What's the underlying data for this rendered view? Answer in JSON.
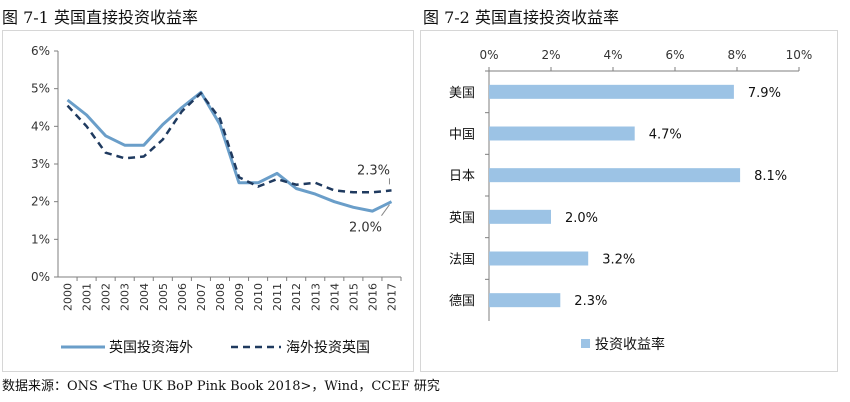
{
  "titles": {
    "chart1": "图 7-1  英国直接投资收益率",
    "chart2": "图 7-2  英国直接投资收益率"
  },
  "source_note": "数据来源：ONS <The UK BoP Pink Book 2018>，Wind，CCEF 研究",
  "colors": {
    "series1": "#6a9ec9",
    "series2": "#1f3a5f",
    "bar": "#9cc3e5",
    "axis": "#7f7f7f"
  },
  "chart_data": [
    {
      "type": "line",
      "title": "英国直接投资收益率",
      "x": [
        "2000",
        "2001",
        "2002",
        "2003",
        "2004",
        "2005",
        "2006",
        "2007",
        "2008",
        "2009",
        "2010",
        "2011",
        "2012",
        "2013",
        "2014",
        "2015",
        "2016",
        "2017"
      ],
      "series": [
        {
          "name": "英国投资海外",
          "values": [
            4.7,
            4.3,
            3.75,
            3.5,
            3.5,
            4.05,
            4.5,
            4.9,
            4.05,
            2.5,
            2.5,
            2.75,
            2.35,
            2.2,
            2.0,
            1.85,
            1.75,
            2.0
          ]
        },
        {
          "name": "海外投资英国",
          "values": [
            4.55,
            4.0,
            3.3,
            3.15,
            3.2,
            3.65,
            4.4,
            4.88,
            4.2,
            2.65,
            2.4,
            2.6,
            2.45,
            2.5,
            2.3,
            2.25,
            2.25,
            2.3
          ]
        }
      ],
      "yticks": [
        "0%",
        "1%",
        "2%",
        "3%",
        "4%",
        "5%",
        "6%"
      ],
      "ylim": [
        0,
        6
      ],
      "annotations": [
        "2.3%",
        "2.0%"
      ],
      "grid": false,
      "legend": "bottom"
    },
    {
      "type": "bar",
      "orientation": "horizontal",
      "title": "英国直接投资收益率",
      "categories": [
        "美国",
        "中国",
        "日本",
        "英国",
        "法国",
        "德国"
      ],
      "values": [
        7.9,
        4.7,
        8.1,
        2.0,
        3.2,
        2.3
      ],
      "labels": [
        "7.9%",
        "4.7%",
        "8.1%",
        "2.0%",
        "3.2%",
        "2.3%"
      ],
      "xticks": [
        "0%",
        "2%",
        "4%",
        "6%",
        "8%",
        "10%"
      ],
      "xlim": [
        0,
        10
      ],
      "legend": "bottom",
      "series_name": "投资收益率"
    }
  ]
}
